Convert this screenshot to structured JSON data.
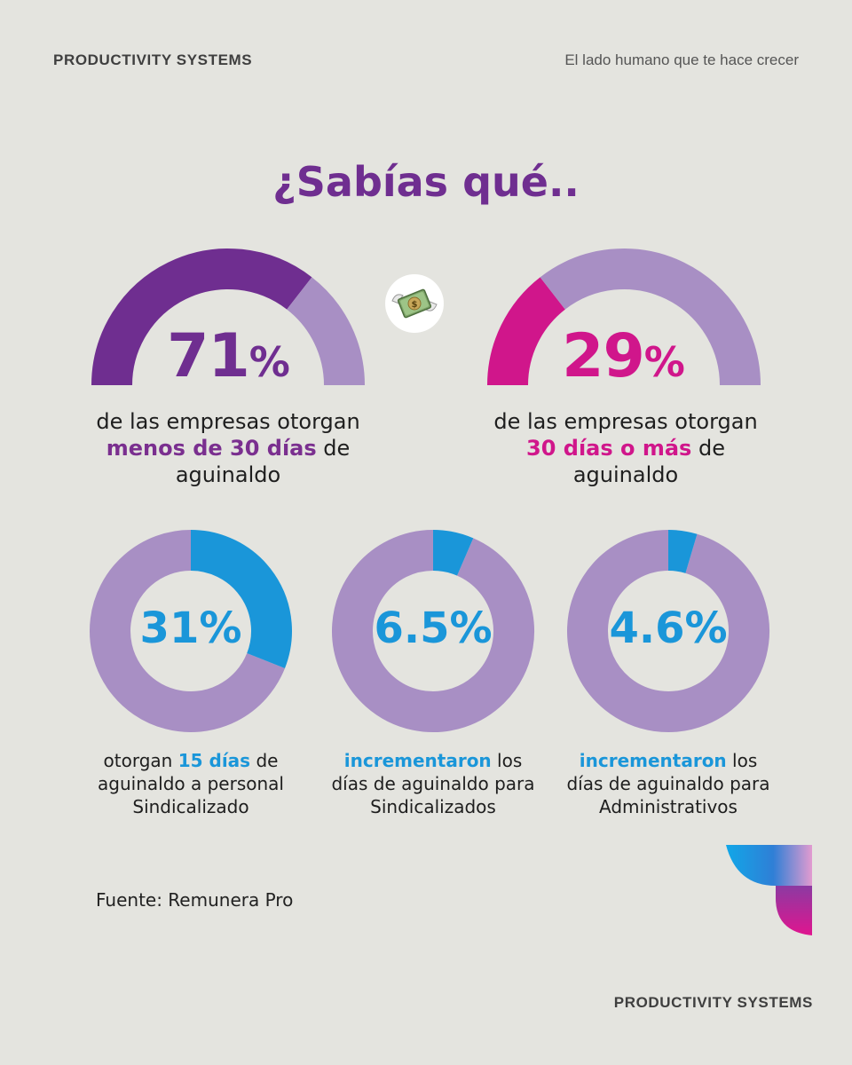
{
  "header": {
    "brand": "PRODUCTIVITY SYSTEMS",
    "tagline": "El lado humano que te hace crecer"
  },
  "headline": "¿Sabías qué..",
  "icon": "money-with-wings-icon",
  "colors": {
    "background": "#e4e4df",
    "purple": "#6f2e90",
    "light_purple": "#a88fc4",
    "pink": "#d0168b",
    "blue": "#1a96d9"
  },
  "gauges": [
    {
      "value_text": "71",
      "pct_sign": "%",
      "desc_before": "de las empresas otorgan",
      "desc_highlight": "menos de 30 días",
      "desc_after": "de",
      "desc_end": "aguinaldo"
    },
    {
      "value_text": "29",
      "pct_sign": "%",
      "desc_before": "de las empresas otorgan",
      "desc_highlight": "30 días o más",
      "desc_after": "de",
      "desc_end": "aguinaldo"
    }
  ],
  "rings": [
    {
      "value_text": "31%",
      "line1_highlight": "",
      "line1_before": "otorgan",
      "line1_mid_highlight": "15 días",
      "line1_after": "de",
      "line2": "aguinaldo a personal",
      "line3": "Sindicalizado"
    },
    {
      "value_text": "6.5%",
      "line1_highlight": "incrementaron",
      "line1_after": "los",
      "line2": "días de aguinaldo para",
      "line3": "Sindicalizados"
    },
    {
      "value_text": "4.6%",
      "line1_highlight": "incrementaron",
      "line1_after": "los",
      "line2": "días de aguinaldo para",
      "line3": "Administrativos"
    }
  ],
  "source": "Fuente: Remunera Pro",
  "footer": {
    "brand": "PRODUCTIVITY SYSTEMS"
  },
  "chart_data": [
    {
      "type": "pie",
      "style": "half-donut",
      "values": [
        71,
        29
      ],
      "color": "#6f2e90",
      "rest_color": "#a88fc4"
    },
    {
      "type": "pie",
      "style": "half-donut",
      "values": [
        29,
        71
      ],
      "color": "#d0168b",
      "rest_color": "#a88fc4"
    },
    {
      "type": "pie",
      "style": "donut",
      "values": [
        31,
        69
      ],
      "color": "#1a96d9",
      "rest_color": "#a88fc4"
    },
    {
      "type": "pie",
      "style": "donut",
      "values": [
        6.5,
        93.5
      ],
      "color": "#1a96d9",
      "rest_color": "#a88fc4"
    },
    {
      "type": "pie",
      "style": "donut",
      "values": [
        4.6,
        95.4
      ],
      "color": "#1a96d9",
      "rest_color": "#a88fc4"
    }
  ]
}
